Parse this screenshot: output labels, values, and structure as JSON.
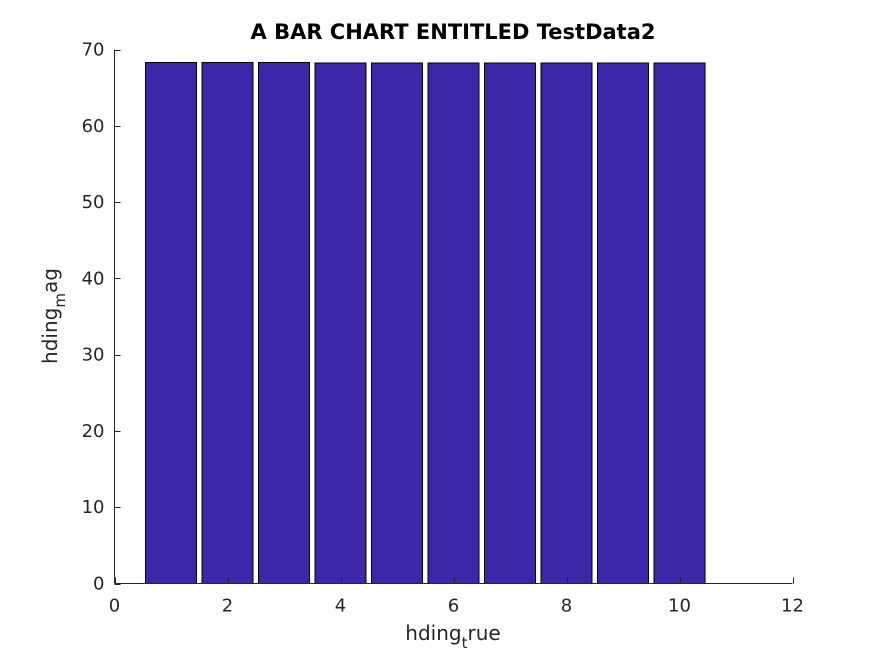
{
  "chart_data": {
    "type": "bar",
    "title": "A BAR CHART ENTITLED TestData2",
    "xlabel": {
      "base": "hding",
      "subscript": "t",
      "rest": "rue"
    },
    "ylabel": {
      "base": "hding",
      "subscript": "m",
      "rest": "ag"
    },
    "x": [
      1,
      2,
      3,
      4,
      5,
      6,
      7,
      8,
      9,
      10
    ],
    "values": [
      68.3,
      68.3,
      68.3,
      68.2,
      68.2,
      68.2,
      68.2,
      68.2,
      68.2,
      68.2
    ],
    "xlim": [
      0,
      12
    ],
    "ylim": [
      0,
      70
    ],
    "xticks": [
      0,
      2,
      4,
      6,
      8,
      10,
      12
    ],
    "yticks": [
      0,
      10,
      20,
      30,
      40,
      50,
      60,
      70
    ],
    "bar_color": "#3D26A8",
    "grid": false
  }
}
